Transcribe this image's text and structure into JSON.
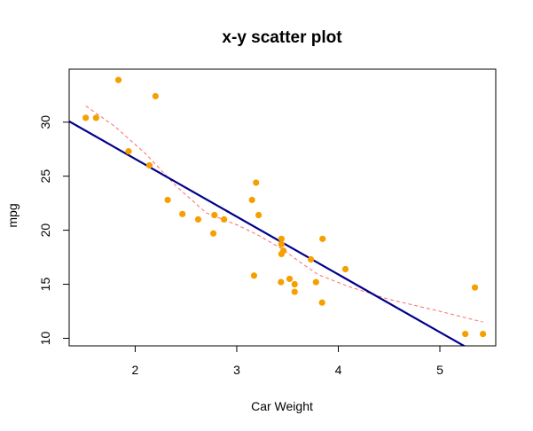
{
  "chart_data": {
    "type": "scatter",
    "title": "x-y scatter plot",
    "xlabel": "Car Weight",
    "ylabel": "mpg",
    "xlim": [
      1.35,
      5.55
    ],
    "ylim": [
      9.3,
      34.9
    ],
    "x_ticks": [
      2,
      3,
      4,
      5
    ],
    "y_ticks": [
      10,
      15,
      20,
      25,
      30
    ],
    "grid": false,
    "legend": "none",
    "colors": {
      "points": "#f5a000",
      "regression_line": "#00008b",
      "lowess_line": "#ff6b6b",
      "axes": "#000000"
    },
    "points": [
      {
        "x": 2.62,
        "y": 21.0
      },
      {
        "x": 2.875,
        "y": 21.0
      },
      {
        "x": 2.32,
        "y": 22.8
      },
      {
        "x": 3.215,
        "y": 21.4
      },
      {
        "x": 3.44,
        "y": 18.7
      },
      {
        "x": 3.46,
        "y": 18.1
      },
      {
        "x": 3.57,
        "y": 14.3
      },
      {
        "x": 3.19,
        "y": 24.4
      },
      {
        "x": 3.15,
        "y": 22.8
      },
      {
        "x": 3.44,
        "y": 19.2
      },
      {
        "x": 3.44,
        "y": 17.8
      },
      {
        "x": 4.07,
        "y": 16.4
      },
      {
        "x": 3.73,
        "y": 17.3
      },
      {
        "x": 3.78,
        "y": 15.2
      },
      {
        "x": 5.25,
        "y": 10.4
      },
      {
        "x": 5.424,
        "y": 10.4
      },
      {
        "x": 5.345,
        "y": 14.7
      },
      {
        "x": 2.2,
        "y": 32.4
      },
      {
        "x": 1.615,
        "y": 30.4
      },
      {
        "x": 1.835,
        "y": 33.9
      },
      {
        "x": 2.465,
        "y": 21.5
      },
      {
        "x": 3.52,
        "y": 15.5
      },
      {
        "x": 3.435,
        "y": 15.2
      },
      {
        "x": 3.84,
        "y": 13.3
      },
      {
        "x": 3.845,
        "y": 19.2
      },
      {
        "x": 1.935,
        "y": 27.3
      },
      {
        "x": 2.14,
        "y": 26.0
      },
      {
        "x": 1.513,
        "y": 30.4
      },
      {
        "x": 3.17,
        "y": 15.8
      },
      {
        "x": 2.77,
        "y": 19.7
      },
      {
        "x": 3.57,
        "y": 15.0
      },
      {
        "x": 2.78,
        "y": 21.4
      }
    ],
    "regression_line": {
      "intercept": 37.285,
      "slope": -5.344
    },
    "lowess_curve": [
      {
        "x": 1.513,
        "y": 31.5
      },
      {
        "x": 1.8,
        "y": 29.6
      },
      {
        "x": 2.1,
        "y": 27.1
      },
      {
        "x": 2.4,
        "y": 24.1
      },
      {
        "x": 2.7,
        "y": 21.6
      },
      {
        "x": 3.0,
        "y": 20.5
      },
      {
        "x": 3.2,
        "y": 19.6
      },
      {
        "x": 3.44,
        "y": 18.3
      },
      {
        "x": 3.6,
        "y": 17.2
      },
      {
        "x": 3.8,
        "y": 15.9
      },
      {
        "x": 4.1,
        "y": 14.8
      },
      {
        "x": 4.5,
        "y": 13.6
      },
      {
        "x": 5.0,
        "y": 12.5
      },
      {
        "x": 5.424,
        "y": 11.5
      }
    ]
  }
}
